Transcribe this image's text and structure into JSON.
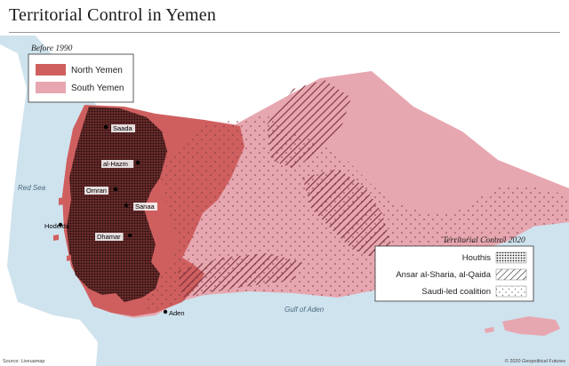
{
  "title": "Territorial Control in Yemen",
  "legend_before": {
    "heading": "Before 1990",
    "items": [
      {
        "label": "North Yemen",
        "color": "#cf5f5f"
      },
      {
        "label": "South Yemen",
        "color": "#e7a7b0"
      }
    ]
  },
  "legend_control": {
    "heading": "Territorial Control 2020",
    "items": [
      {
        "label": "Houthis",
        "pattern": "dense-dots"
      },
      {
        "label": "Ansar al-Sharia, al-Qaida",
        "pattern": "diagonal-hatch"
      },
      {
        "label": "Saudi-led coalition",
        "pattern": "sparse-dots"
      }
    ]
  },
  "cities": [
    "Saada",
    "al-Hazm",
    "Omran",
    "Sanaa",
    "Dhamar",
    "Hodeida",
    "Aden"
  ],
  "water_labels": {
    "red_sea": "Red Sea",
    "gulf_of_aden": "Gulf of Aden"
  },
  "source": "Source: Liveuamap",
  "copyright": "© 2020 Geopolitical Futures",
  "colors": {
    "sea": "#cfe3ee",
    "land": "#ffffff",
    "north": "#cf5f5f",
    "south": "#e7a7b0",
    "houthi": "#3b1a1a"
  }
}
